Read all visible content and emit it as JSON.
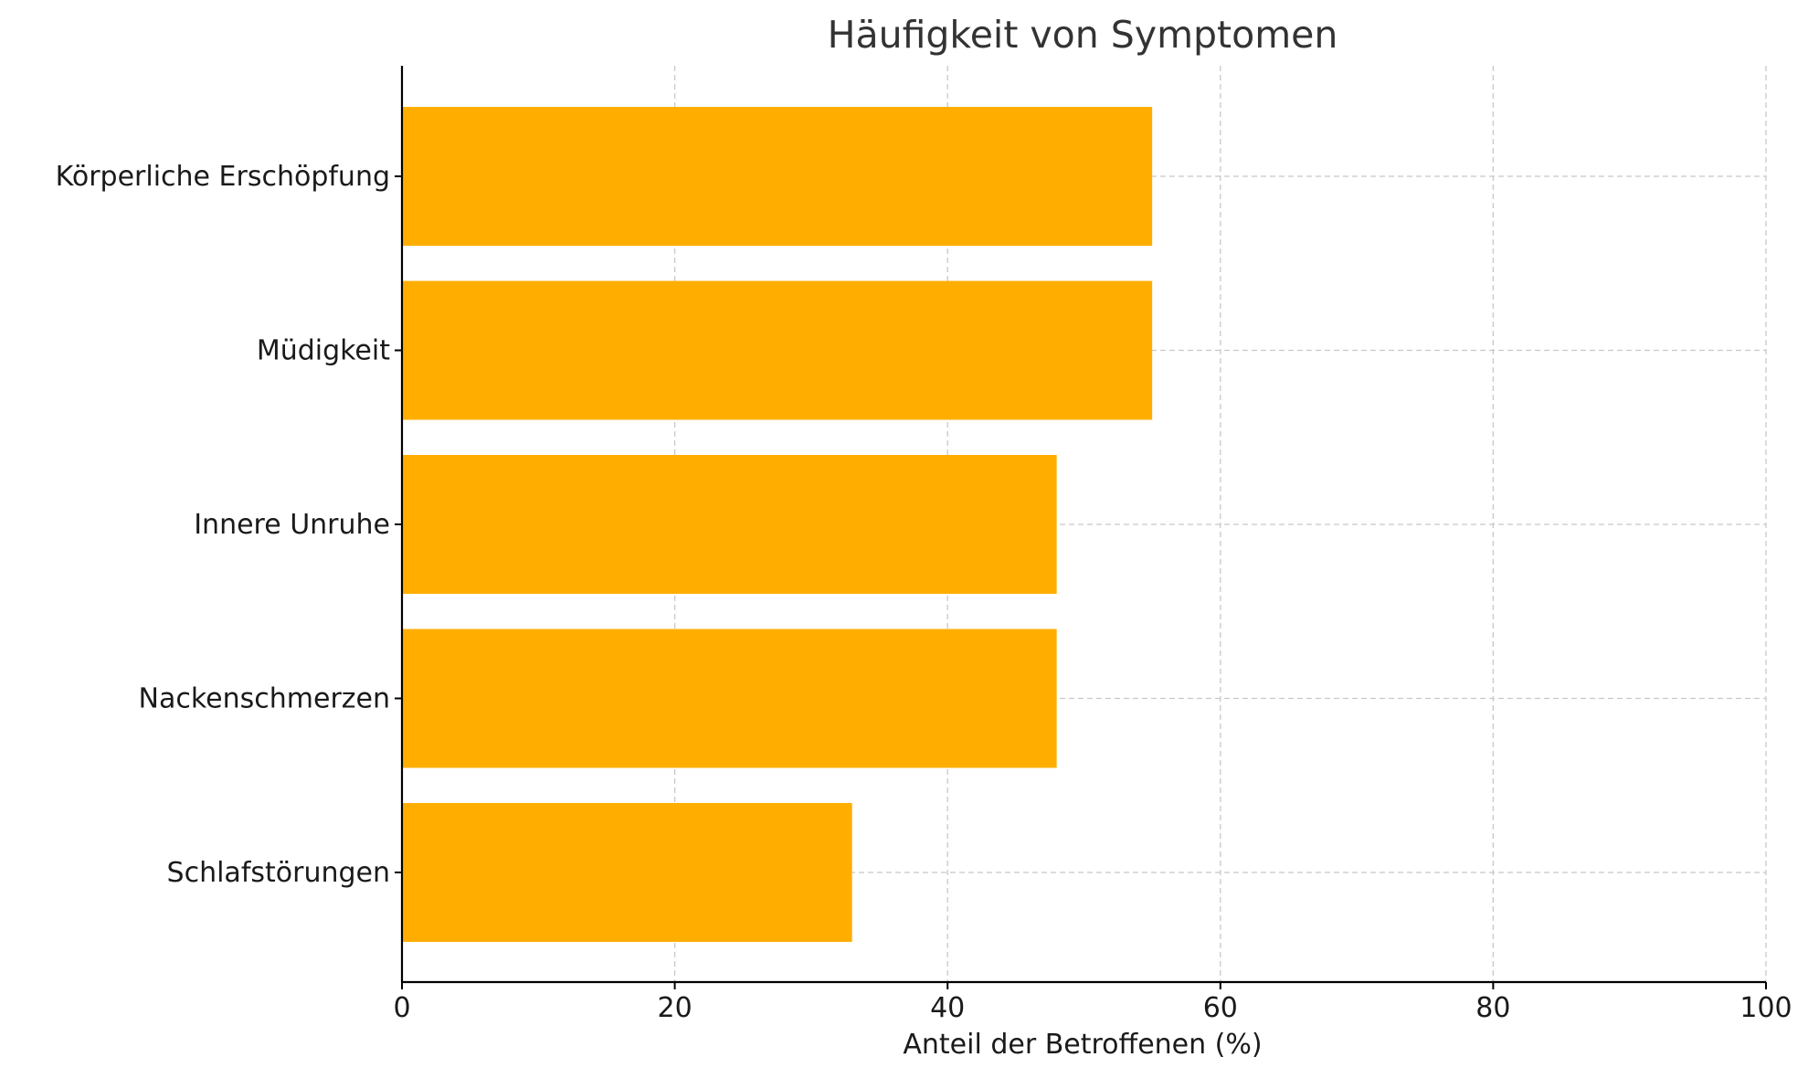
{
  "chart_data": {
    "type": "bar",
    "orientation": "horizontal",
    "title": "Häufigkeit von Symptomen",
    "xlabel": "Anteil der Betroffenen (%)",
    "ylabel": "",
    "categories": [
      "Körperliche Erschöpfung",
      "Müdigkeit",
      "Innere Unruhe",
      "Nackenschmerzen",
      "Schlafstörungen"
    ],
    "values": [
      55,
      55,
      48,
      48,
      33
    ],
    "xlim": [
      0,
      100
    ],
    "xticks": [
      0,
      20,
      40,
      60,
      80,
      100
    ],
    "xtick_labels": [
      "0",
      "20",
      "40",
      "60",
      "80",
      "100"
    ],
    "grid": true,
    "bar_color": "#ffae00"
  }
}
